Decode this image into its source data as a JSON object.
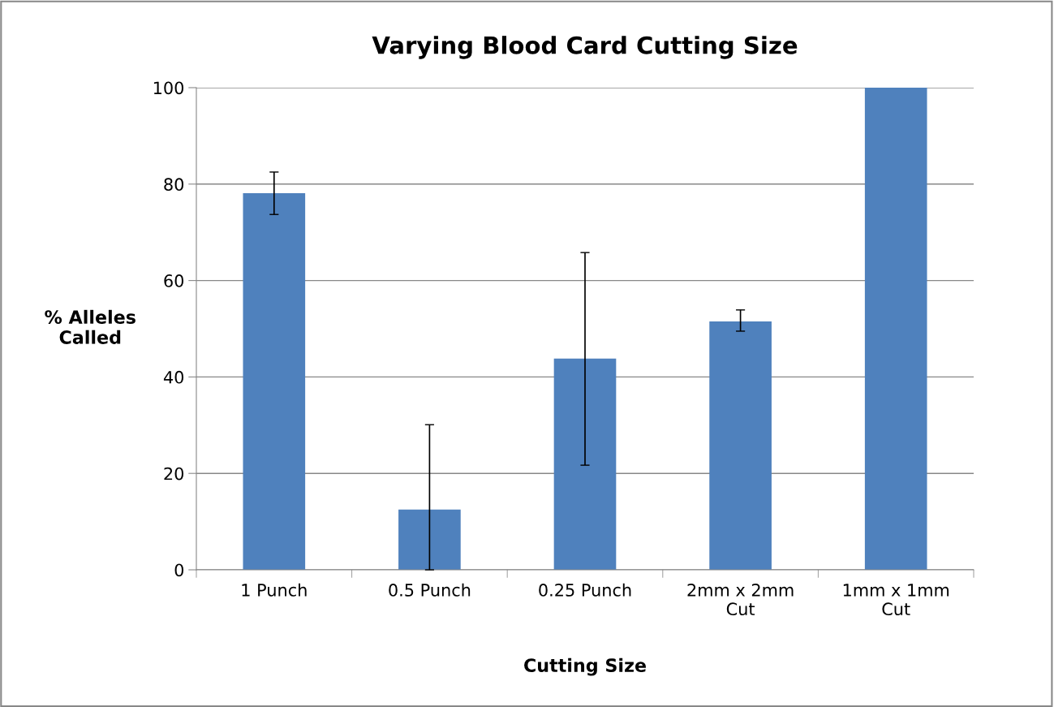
{
  "chart_data": {
    "type": "bar",
    "title": "Varying Blood Card Cutting Size",
    "xlabel": "Cutting Size",
    "ylabel": "% Alleles\nCalled",
    "categories": [
      "1 Punch",
      "0.5 Punch",
      "0.25 Punch",
      "2mm x 2mm\nCut",
      "1mm x 1mm\nCut"
    ],
    "values": [
      78.1,
      12.5,
      43.8,
      51.5,
      100
    ],
    "errors": [
      [
        73.7,
        82.5
      ],
      [
        0,
        30.1
      ],
      [
        21.7,
        65.8
      ],
      [
        49.5,
        53.9
      ],
      null
    ],
    "color": "#4f81bd",
    "ylim": [
      0,
      100
    ],
    "yticks": [
      0,
      20,
      40,
      60,
      80,
      100
    ],
    "grid": "y",
    "legend": false
  }
}
